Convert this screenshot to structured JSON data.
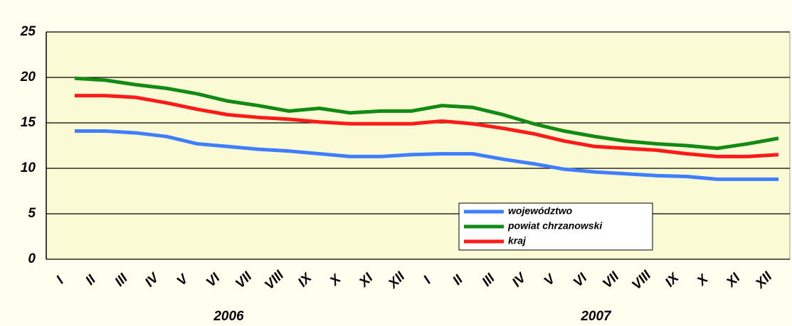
{
  "chart_data": {
    "type": "line",
    "categories": [
      "I",
      "II",
      "III",
      "IV",
      "V",
      "VI",
      "VII",
      "VIII",
      "IX",
      "X",
      "XI",
      "XII",
      "I",
      "II",
      "III",
      "IV",
      "V",
      "VI",
      "VII",
      "VIII",
      "IX",
      "X",
      "XI",
      "XII"
    ],
    "year_labels": [
      "2006",
      "2007"
    ],
    "series": [
      {
        "name": "województwo",
        "color": "#3f7fff",
        "values": [
          14.1,
          14.1,
          13.9,
          13.5,
          12.7,
          12.4,
          12.1,
          11.9,
          11.6,
          11.3,
          11.3,
          11.5,
          11.6,
          11.6,
          11.0,
          10.5,
          9.9,
          9.6,
          9.4,
          9.2,
          9.1,
          8.8,
          8.8,
          8.8
        ]
      },
      {
        "name": "powiat chrzanowski",
        "color": "#138a13",
        "values": [
          19.9,
          19.7,
          19.2,
          18.8,
          18.2,
          17.4,
          16.9,
          16.3,
          16.6,
          16.1,
          16.3,
          16.3,
          16.9,
          16.7,
          15.9,
          14.9,
          14.1,
          13.5,
          13.0,
          12.7,
          12.5,
          12.2,
          12.7,
          13.3
        ]
      },
      {
        "name": "kraj",
        "color": "#ff1a1a",
        "values": [
          18.0,
          18.0,
          17.8,
          17.2,
          16.5,
          15.9,
          15.6,
          15.4,
          15.1,
          14.9,
          14.9,
          14.9,
          15.2,
          14.9,
          14.4,
          13.8,
          13.0,
          12.4,
          12.2,
          12.0,
          11.6,
          11.3,
          11.3,
          11.5
        ]
      }
    ],
    "ylim": [
      0,
      25
    ],
    "yticks": [
      0,
      5,
      10,
      15,
      20,
      25
    ],
    "grid": true
  }
}
